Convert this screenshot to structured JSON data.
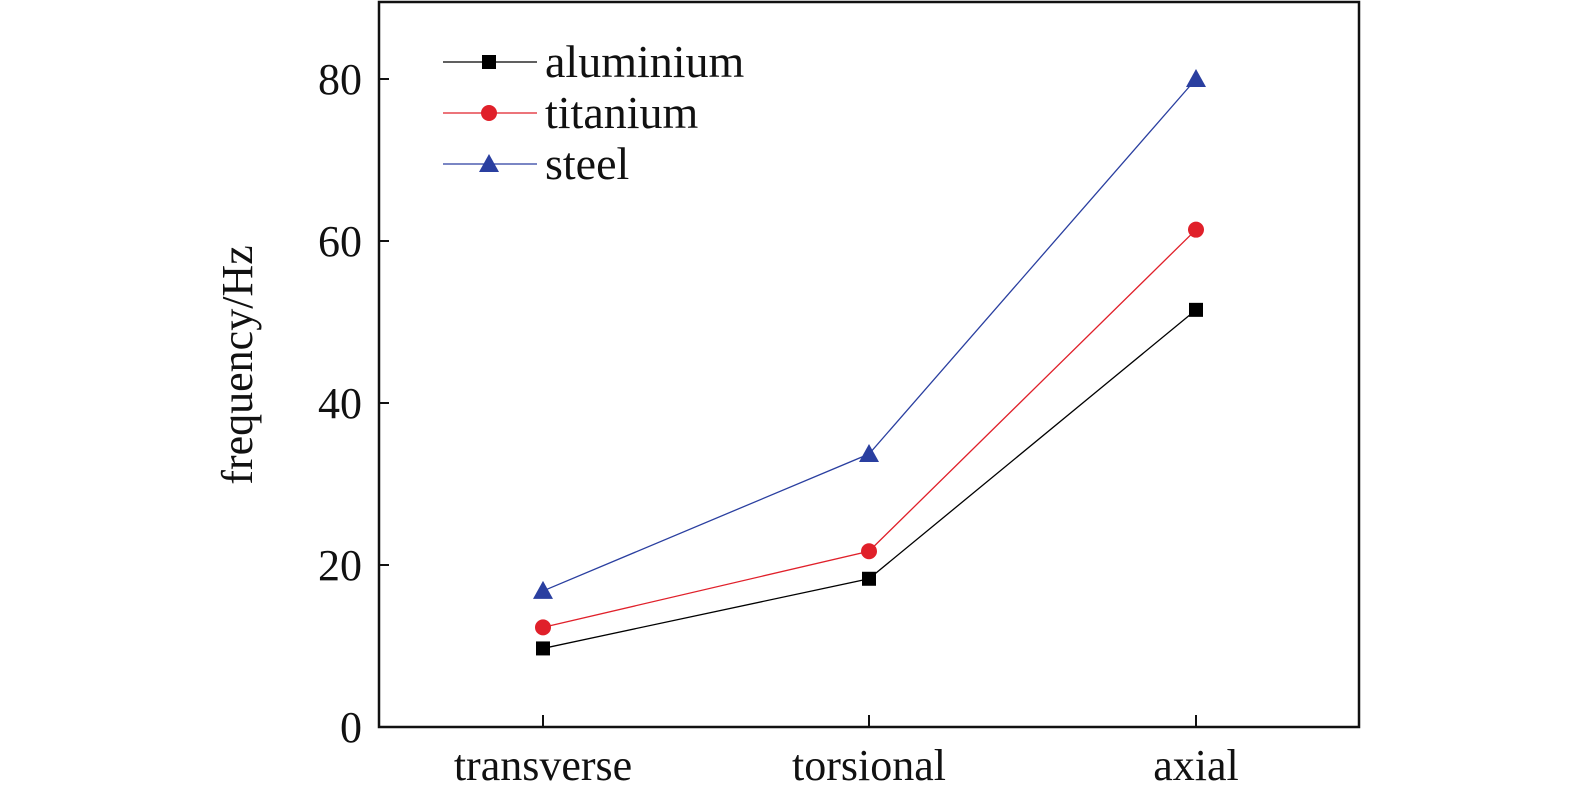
{
  "chart_data": {
    "type": "line",
    "title": "",
    "xlabel": "",
    "ylabel": "frequency/Hz",
    "categories": [
      "transverse",
      "torsional",
      "axial"
    ],
    "ylim": [
      0,
      90
    ],
    "yticks": [
      0,
      20,
      40,
      60,
      80
    ],
    "grid": false,
    "legend_position": "top-left",
    "series": [
      {
        "name": "aluminium",
        "values": [
          9.7,
          18.3,
          51.5
        ],
        "color": "#000000",
        "marker": "square"
      },
      {
        "name": "titanium",
        "values": [
          12.3,
          21.7,
          61.4
        ],
        "color": "#e0202a",
        "marker": "circle"
      },
      {
        "name": "steel",
        "values": [
          16.8,
          33.7,
          80.0
        ],
        "color": "#2a3fa0",
        "marker": "triangle"
      }
    ]
  }
}
